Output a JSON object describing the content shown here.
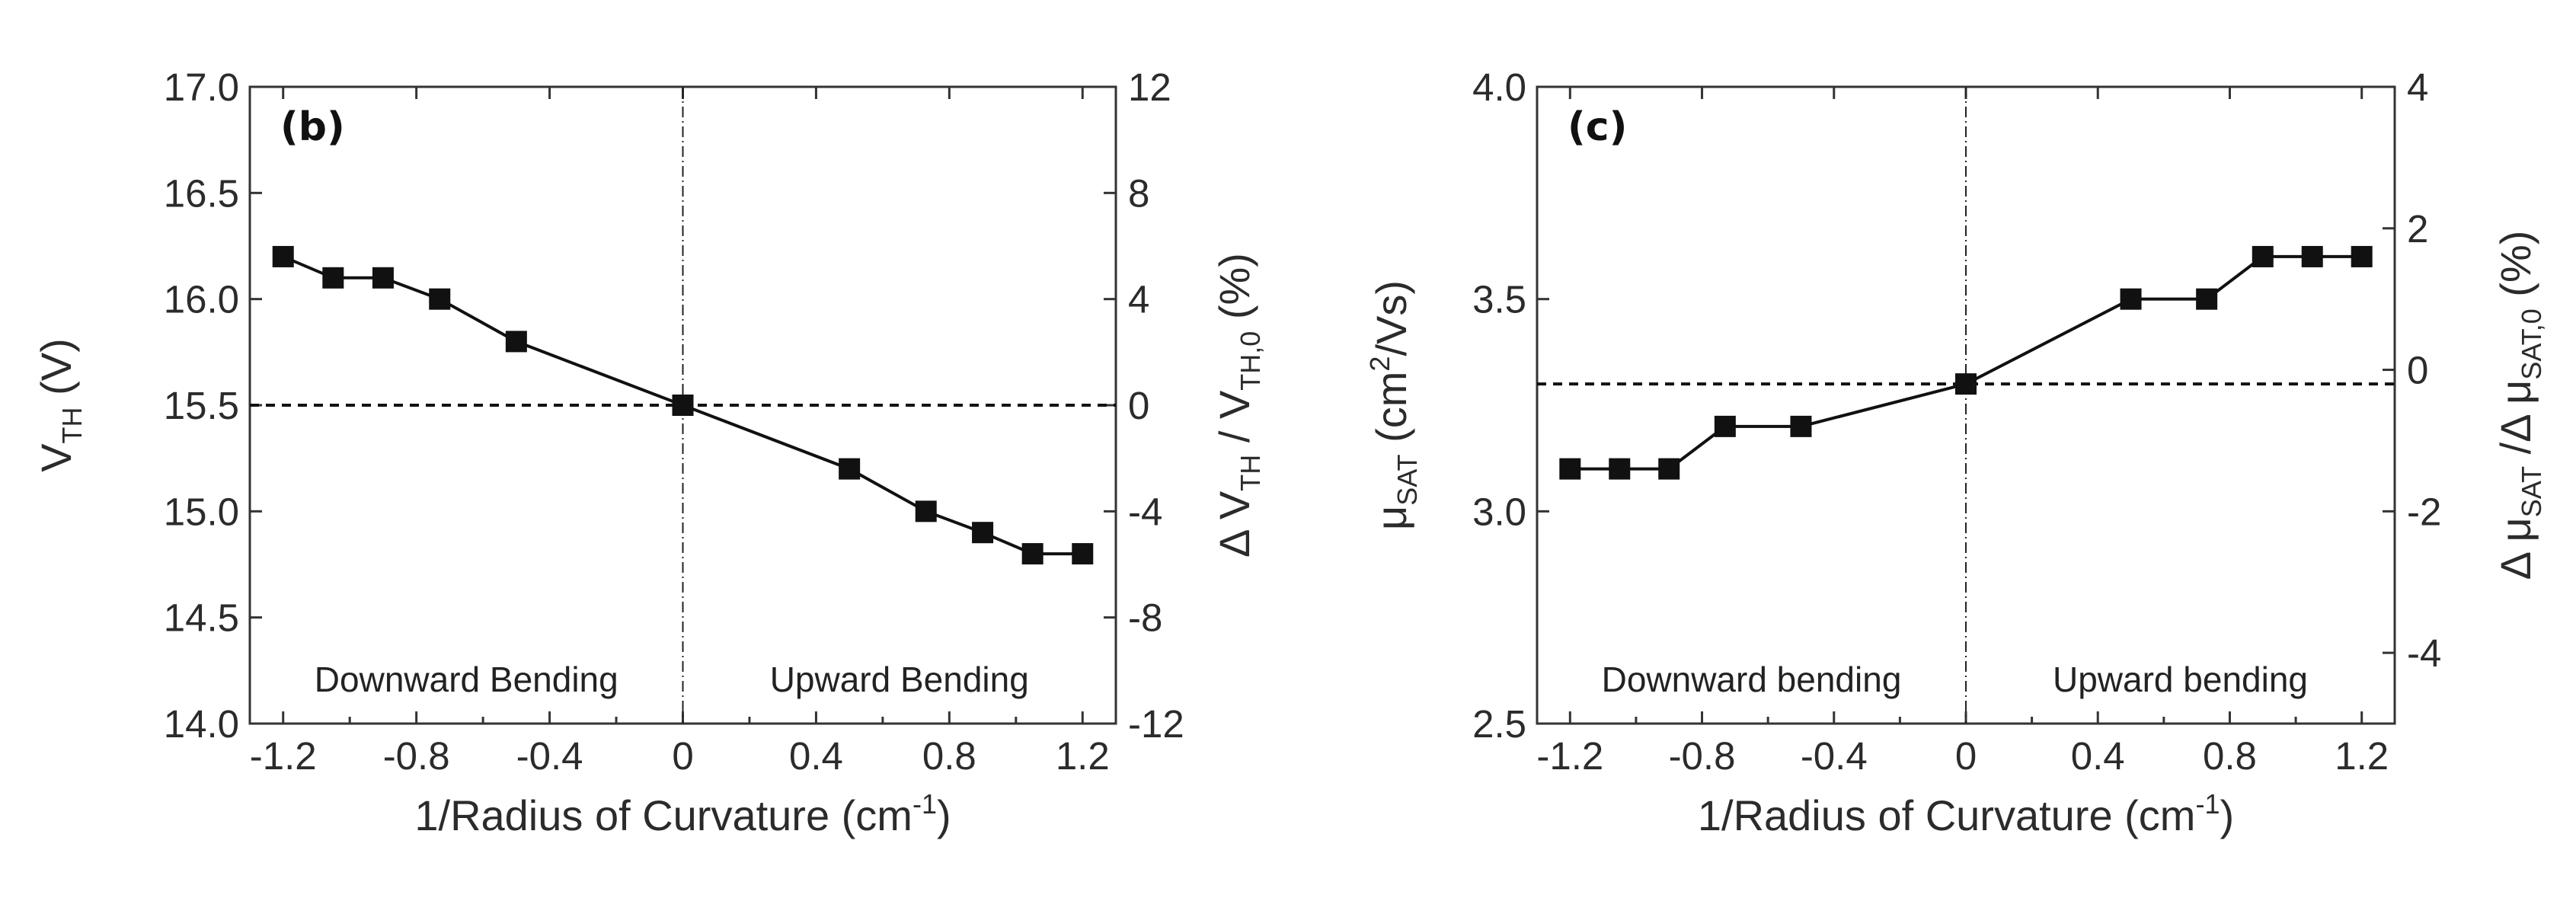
{
  "chart_data": [
    {
      "type": "line",
      "panel_label": "(b)",
      "xlabel": "1/Radius of Curvature (cm-1)",
      "xlabel_parts": {
        "main": "1/Radius of Curvature (cm",
        "sup": "-1",
        "tail": ")"
      },
      "ylabel": "VTH (V)",
      "ylabel_parts": {
        "main": "V",
        "sub": "TH",
        "tail": " (V)"
      },
      "y2label": "Δ VTH / VTH,0 (%)",
      "y2label_parts": {
        "a": "Δ V",
        "a_sub": "TH",
        "b": " / V",
        "b_sub": "TH,0",
        "c": " (%)"
      },
      "xlim": [
        -1.3,
        1.3
      ],
      "ylim": [
        14.0,
        17.0
      ],
      "y2lim": [
        -12,
        12
      ],
      "x_ticks": [
        "-1.2",
        "-0.8",
        "-0.4",
        "0",
        "0.4",
        "0.8",
        "1.2"
      ],
      "y_ticks": [
        "14.0",
        "14.5",
        "15.0",
        "15.5",
        "16.0",
        "16.5",
        "17.0"
      ],
      "y2_ticks": [
        "-12",
        "-8",
        "-4",
        "0",
        "4",
        "8",
        "12"
      ],
      "reference_y": 15.5,
      "reference_x": 0,
      "regions": [
        "Downward Bending",
        "Upward Bending"
      ],
      "series": [
        {
          "name": "VTH",
          "x": [
            -1.2,
            -1.05,
            -0.9,
            -0.73,
            -0.5,
            0,
            0.5,
            0.73,
            0.9,
            1.05,
            1.2
          ],
          "y": [
            16.2,
            16.1,
            16.1,
            16.0,
            15.8,
            15.5,
            15.2,
            15.0,
            14.9,
            14.8,
            14.8
          ]
        }
      ]
    },
    {
      "type": "line",
      "panel_label": "(c)",
      "xlabel": "1/Radius of Curvature (cm-1)",
      "xlabel_parts": {
        "main": "1/Radius of Curvature (cm",
        "sup": "-1",
        "tail": ")"
      },
      "ylabel": "μSAT (cm2/Vs)",
      "ylabel_parts": {
        "main": "μ",
        "sub": "SAT",
        "mid": " (cm",
        "sup": "2",
        "tail": "/Vs)"
      },
      "y2label": "Δ μSAT / Δ μSAT,0 (%)",
      "y2label_parts": {
        "a": "Δ μ",
        "a_sub": "SAT",
        "b": " /Δ μ",
        "b_sub": "SAT,0",
        "c": " (%)"
      },
      "xlim": [
        -1.3,
        1.3
      ],
      "ylim": [
        2.5,
        4.0
      ],
      "y2lim": [
        -5,
        4
      ],
      "x_ticks": [
        "-1.2",
        "-0.8",
        "-0.4",
        "0",
        "0.4",
        "0.8",
        "1.2"
      ],
      "y_ticks": [
        "2.5",
        "3.0",
        "3.5",
        "4.0"
      ],
      "y2_ticks": [
        "-4",
        "-2",
        "0",
        "2",
        "4"
      ],
      "reference_y": 3.3,
      "reference_x": 0,
      "regions": [
        "Downward bending",
        "Upward bending"
      ],
      "series": [
        {
          "name": "μSAT",
          "x": [
            -1.2,
            -1.05,
            -0.9,
            -0.73,
            -0.5,
            0,
            0.5,
            0.73,
            0.9,
            1.05,
            1.2
          ],
          "y": [
            3.1,
            3.1,
            3.1,
            3.2,
            3.2,
            3.3,
            3.5,
            3.5,
            3.6,
            3.6,
            3.6
          ]
        }
      ]
    }
  ]
}
